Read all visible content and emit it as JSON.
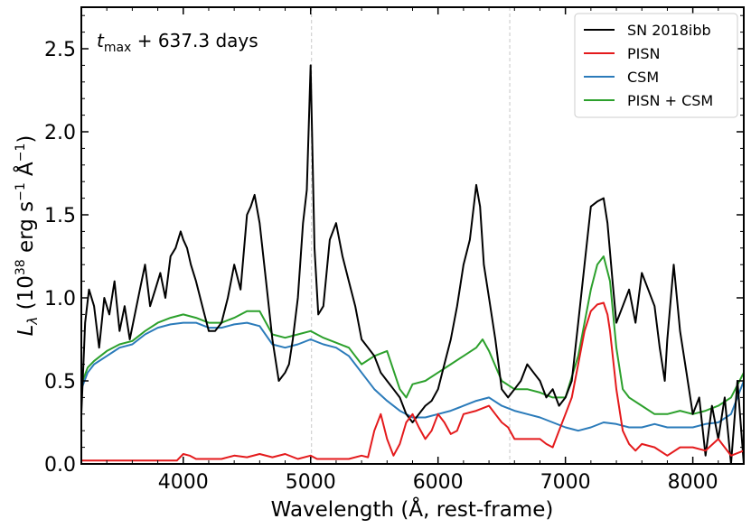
{
  "chart_data": {
    "type": "line",
    "annotation_main": "t",
    "annotation_sub": "max",
    "annotation_rest": " + 637.3 days",
    "xlabel": "Wavelength (Å, rest-frame)",
    "ylabel_prefix": "L",
    "ylabel_sub": "λ",
    "ylabel_unit_a": " (10",
    "ylabel_exp_a": "38",
    "ylabel_unit_b": " erg s",
    "ylabel_exp_b": "−1",
    "ylabel_unit_c": " Å",
    "ylabel_exp_c": "−1",
    "ylabel_unit_d": ")",
    "xlim": [
      3200,
      8400
    ],
    "ylim": [
      0.0,
      2.75
    ],
    "xticks": [
      4000,
      5000,
      6000,
      7000,
      8000
    ],
    "xtick_labels": [
      "4000",
      "5000",
      "6000",
      "7000",
      "8000"
    ],
    "yticks": [
      0.0,
      0.5,
      1.0,
      1.5,
      2.0,
      2.5
    ],
    "ytick_labels": [
      "0.0",
      "0.5",
      "1.0",
      "1.5",
      "2.0",
      "2.5"
    ],
    "vlines": [
      5007,
      6563
    ],
    "legend_position": "top-right",
    "series": [
      {
        "name": "SN 2018ibb",
        "color": "#000000",
        "x": [
          3200,
          3230,
          3260,
          3300,
          3340,
          3380,
          3420,
          3460,
          3500,
          3540,
          3580,
          3620,
          3660,
          3700,
          3740,
          3780,
          3820,
          3860,
          3900,
          3940,
          3980,
          4000,
          4030,
          4060,
          4100,
          4150,
          4200,
          4250,
          4300,
          4350,
          4400,
          4450,
          4500,
          4530,
          4560,
          4600,
          4650,
          4700,
          4750,
          4800,
          4830,
          4860,
          4900,
          4940,
          4970,
          5000,
          5030,
          5060,
          5100,
          5150,
          5200,
          5250,
          5300,
          5350,
          5400,
          5450,
          5500,
          5550,
          5600,
          5650,
          5700,
          5750,
          5800,
          5850,
          5900,
          5950,
          6000,
          6050,
          6100,
          6150,
          6200,
          6250,
          6300,
          6330,
          6360,
          6400,
          6450,
          6500,
          6550,
          6600,
          6650,
          6700,
          6750,
          6800,
          6850,
          6900,
          6950,
          7000,
          7050,
          7100,
          7150,
          7200,
          7250,
          7300,
          7330,
          7370,
          7400,
          7450,
          7500,
          7550,
          7600,
          7650,
          7700,
          7740,
          7780,
          7800,
          7850,
          7900,
          7950,
          8000,
          8050,
          8100,
          8150,
          8200,
          8250,
          8300,
          8350,
          8400
        ],
        "y": [
          0.3,
          0.85,
          1.05,
          0.95,
          0.7,
          1.0,
          0.9,
          1.1,
          0.8,
          0.95,
          0.75,
          0.9,
          1.05,
          1.2,
          0.95,
          1.05,
          1.15,
          1.0,
          1.25,
          1.3,
          1.4,
          1.35,
          1.3,
          1.2,
          1.1,
          0.95,
          0.8,
          0.8,
          0.85,
          1.0,
          1.2,
          1.05,
          1.5,
          1.55,
          1.62,
          1.45,
          1.1,
          0.75,
          0.5,
          0.55,
          0.6,
          0.75,
          1.0,
          1.45,
          1.65,
          2.4,
          1.3,
          0.9,
          0.95,
          1.35,
          1.45,
          1.25,
          1.1,
          0.95,
          0.75,
          0.7,
          0.65,
          0.55,
          0.5,
          0.45,
          0.4,
          0.3,
          0.25,
          0.3,
          0.35,
          0.38,
          0.45,
          0.6,
          0.75,
          0.95,
          1.2,
          1.35,
          1.68,
          1.55,
          1.2,
          1.0,
          0.75,
          0.45,
          0.4,
          0.45,
          0.5,
          0.6,
          0.55,
          0.5,
          0.4,
          0.45,
          0.35,
          0.4,
          0.5,
          0.85,
          1.2,
          1.55,
          1.58,
          1.6,
          1.45,
          1.1,
          0.85,
          0.95,
          1.05,
          0.85,
          1.15,
          1.05,
          0.95,
          0.7,
          0.5,
          0.75,
          1.2,
          0.8,
          0.55,
          0.3,
          0.4,
          0.05,
          0.35,
          0.15,
          0.4,
          0.0,
          0.5,
          0.0
        ]
      },
      {
        "name": "PISN",
        "color": "#e41a1c",
        "x": [
          3200,
          3400,
          3600,
          3800,
          3950,
          4000,
          4050,
          4100,
          4200,
          4300,
          4400,
          4500,
          4600,
          4700,
          4800,
          4900,
          5000,
          5050,
          5100,
          5200,
          5300,
          5400,
          5450,
          5500,
          5550,
          5600,
          5650,
          5700,
          5750,
          5800,
          5850,
          5900,
          5950,
          6000,
          6050,
          6100,
          6150,
          6200,
          6300,
          6400,
          6450,
          6500,
          6550,
          6600,
          6700,
          6800,
          6850,
          6900,
          6950,
          7000,
          7050,
          7100,
          7150,
          7200,
          7250,
          7300,
          7330,
          7350,
          7400,
          7450,
          7500,
          7550,
          7600,
          7700,
          7800,
          7900,
          8000,
          8100,
          8200,
          8300,
          8400
        ],
        "y": [
          0.02,
          0.02,
          0.02,
          0.02,
          0.02,
          0.06,
          0.05,
          0.03,
          0.03,
          0.03,
          0.05,
          0.04,
          0.06,
          0.04,
          0.06,
          0.03,
          0.05,
          0.03,
          0.03,
          0.03,
          0.03,
          0.05,
          0.04,
          0.2,
          0.3,
          0.15,
          0.05,
          0.12,
          0.25,
          0.3,
          0.22,
          0.15,
          0.2,
          0.3,
          0.25,
          0.18,
          0.2,
          0.3,
          0.32,
          0.35,
          0.3,
          0.25,
          0.22,
          0.15,
          0.15,
          0.15,
          0.12,
          0.1,
          0.2,
          0.3,
          0.4,
          0.6,
          0.8,
          0.92,
          0.96,
          0.97,
          0.9,
          0.8,
          0.45,
          0.2,
          0.12,
          0.08,
          0.12,
          0.1,
          0.05,
          0.1,
          0.1,
          0.08,
          0.15,
          0.05,
          0.08
        ]
      },
      {
        "name": "CSM",
        "color": "#2b7bba",
        "x": [
          3200,
          3250,
          3300,
          3400,
          3500,
          3600,
          3700,
          3800,
          3900,
          4000,
          4100,
          4200,
          4300,
          4400,
          4500,
          4600,
          4700,
          4800,
          4900,
          5000,
          5100,
          5200,
          5300,
          5400,
          5500,
          5600,
          5700,
          5800,
          5900,
          6000,
          6100,
          6200,
          6300,
          6400,
          6500,
          6600,
          6700,
          6800,
          6900,
          7000,
          7100,
          7200,
          7300,
          7400,
          7500,
          7600,
          7700,
          7800,
          7900,
          8000,
          8100,
          8200,
          8300,
          8400
        ],
        "y": [
          0.45,
          0.55,
          0.6,
          0.65,
          0.7,
          0.72,
          0.78,
          0.82,
          0.84,
          0.85,
          0.85,
          0.82,
          0.82,
          0.84,
          0.85,
          0.83,
          0.72,
          0.7,
          0.72,
          0.75,
          0.72,
          0.7,
          0.65,
          0.55,
          0.45,
          0.38,
          0.32,
          0.28,
          0.28,
          0.3,
          0.32,
          0.35,
          0.38,
          0.4,
          0.35,
          0.32,
          0.3,
          0.28,
          0.25,
          0.22,
          0.2,
          0.22,
          0.25,
          0.24,
          0.22,
          0.22,
          0.24,
          0.22,
          0.22,
          0.22,
          0.24,
          0.25,
          0.3,
          0.5
        ]
      },
      {
        "name": "PISN + CSM",
        "color": "#2ca02c",
        "x": [
          3200,
          3250,
          3300,
          3400,
          3500,
          3600,
          3700,
          3800,
          3900,
          4000,
          4100,
          4200,
          4300,
          4400,
          4500,
          4600,
          4700,
          4800,
          4900,
          5000,
          5100,
          5200,
          5300,
          5400,
          5500,
          5600,
          5700,
          5750,
          5800,
          5900,
          6000,
          6100,
          6200,
          6300,
          6350,
          6400,
          6500,
          6600,
          6700,
          6800,
          6900,
          7000,
          7100,
          7150,
          7200,
          7250,
          7300,
          7350,
          7400,
          7450,
          7500,
          7600,
          7700,
          7800,
          7900,
          8000,
          8100,
          8200,
          8300,
          8400
        ],
        "y": [
          0.48,
          0.58,
          0.62,
          0.68,
          0.72,
          0.74,
          0.8,
          0.85,
          0.88,
          0.9,
          0.88,
          0.85,
          0.85,
          0.88,
          0.92,
          0.92,
          0.78,
          0.76,
          0.78,
          0.8,
          0.76,
          0.73,
          0.7,
          0.6,
          0.65,
          0.68,
          0.45,
          0.4,
          0.48,
          0.5,
          0.55,
          0.6,
          0.65,
          0.7,
          0.75,
          0.68,
          0.5,
          0.45,
          0.45,
          0.43,
          0.4,
          0.4,
          0.65,
          0.85,
          1.05,
          1.2,
          1.25,
          1.1,
          0.7,
          0.45,
          0.4,
          0.35,
          0.3,
          0.3,
          0.32,
          0.3,
          0.32,
          0.35,
          0.4,
          0.55
        ]
      }
    ]
  }
}
